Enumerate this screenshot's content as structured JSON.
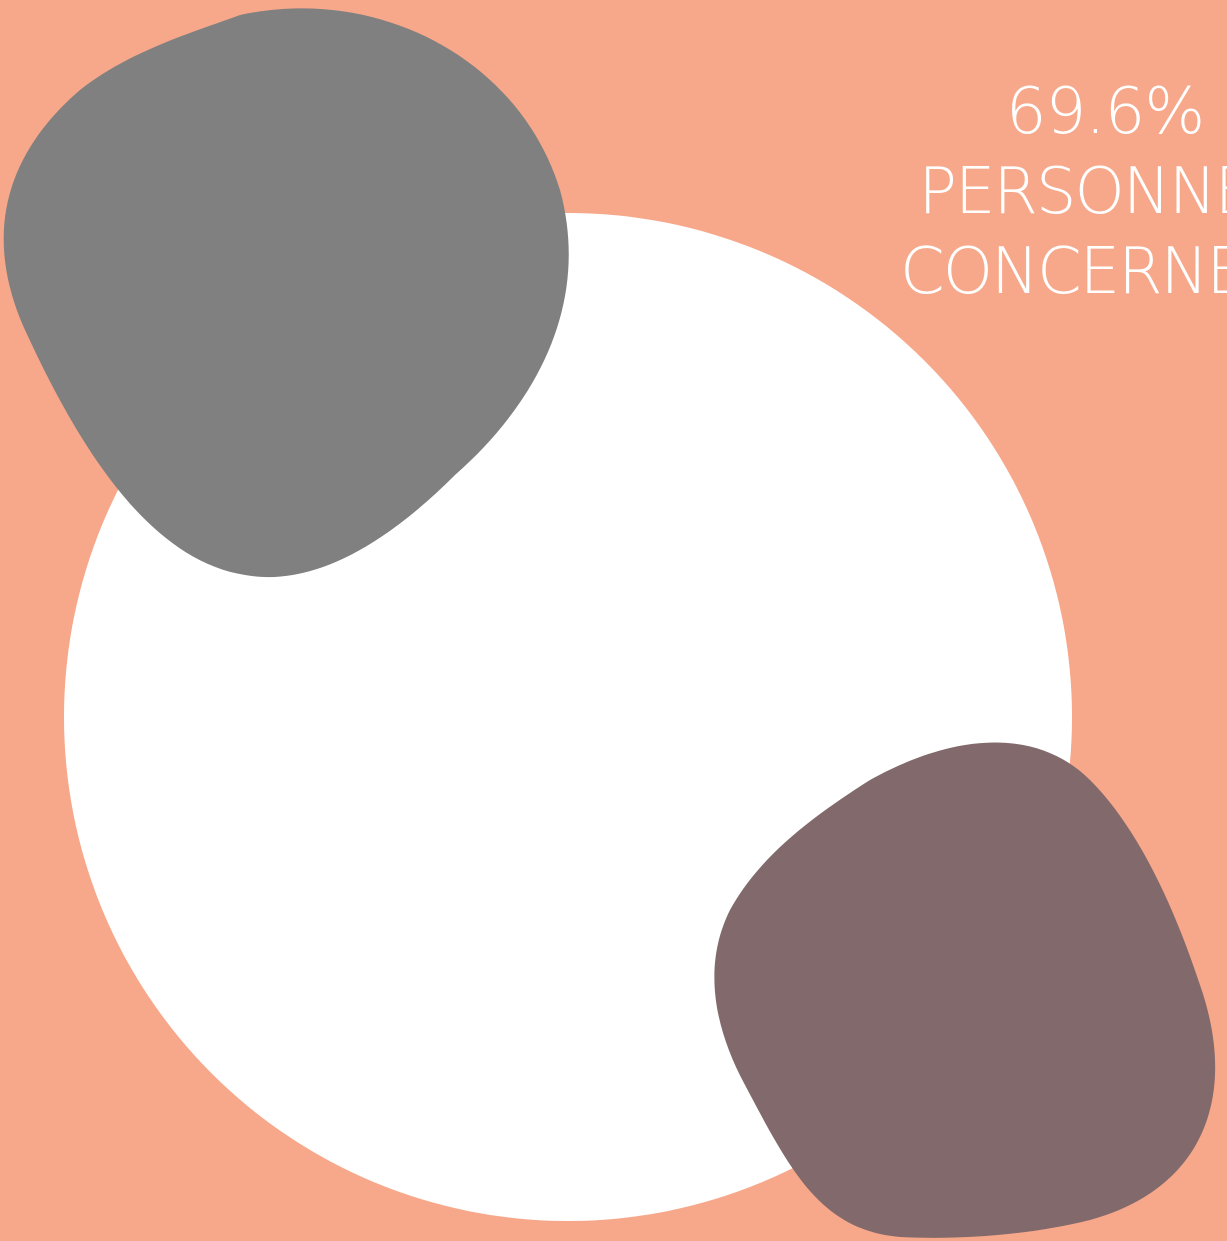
{
  "colors": {
    "background": "#f7a88a",
    "circle": "#ffffff",
    "blob_grey": "#808080",
    "blob_mauve": "#82696b",
    "text": "#ffffff"
  },
  "stat": {
    "value": "69.6%",
    "label_line1": "PERSONNES",
    "label_line2": "CONCERNEES"
  }
}
